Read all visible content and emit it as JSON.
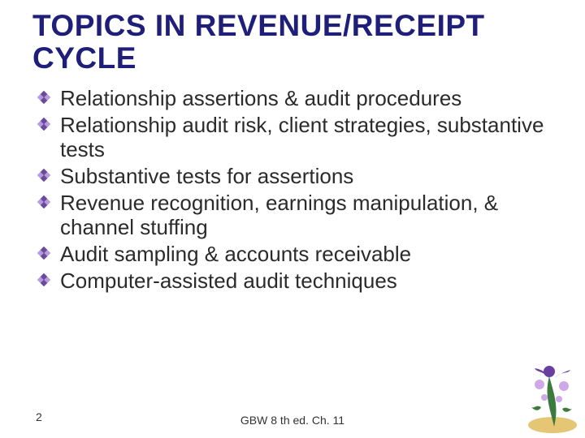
{
  "slide": {
    "title": "TOPICS IN REVENUE/RECEIPT CYCLE",
    "title_color": "#1f1f7a",
    "title_fontsize": 37,
    "title_weight": 900,
    "bullets": [
      "Relationship assertions & audit procedures",
      "Relationship audit risk, client strategies, substantive tests",
      "Substantive tests for assertions",
      "Revenue recognition, earnings manipulation, & channel stuffing",
      "Audit sampling & accounts receivable",
      "Computer-assisted audit techniques"
    ],
    "bullet_fontsize": 26,
    "bullet_color": "#2b2b2b",
    "bullet_marker": {
      "type": "diamond-grid",
      "size": 16,
      "fill": "#b89adf",
      "accent": "#6a4a9c"
    },
    "page_number": "2",
    "footer": "GBW 8 th ed. Ch. 11",
    "background_color": "#ffffff",
    "decoration": {
      "type": "floral-corner",
      "colors": {
        "primary": "#6a3fa0",
        "leaf": "#3d7a3d",
        "accent": "#cfa8e8",
        "gold": "#d4a017"
      }
    }
  }
}
